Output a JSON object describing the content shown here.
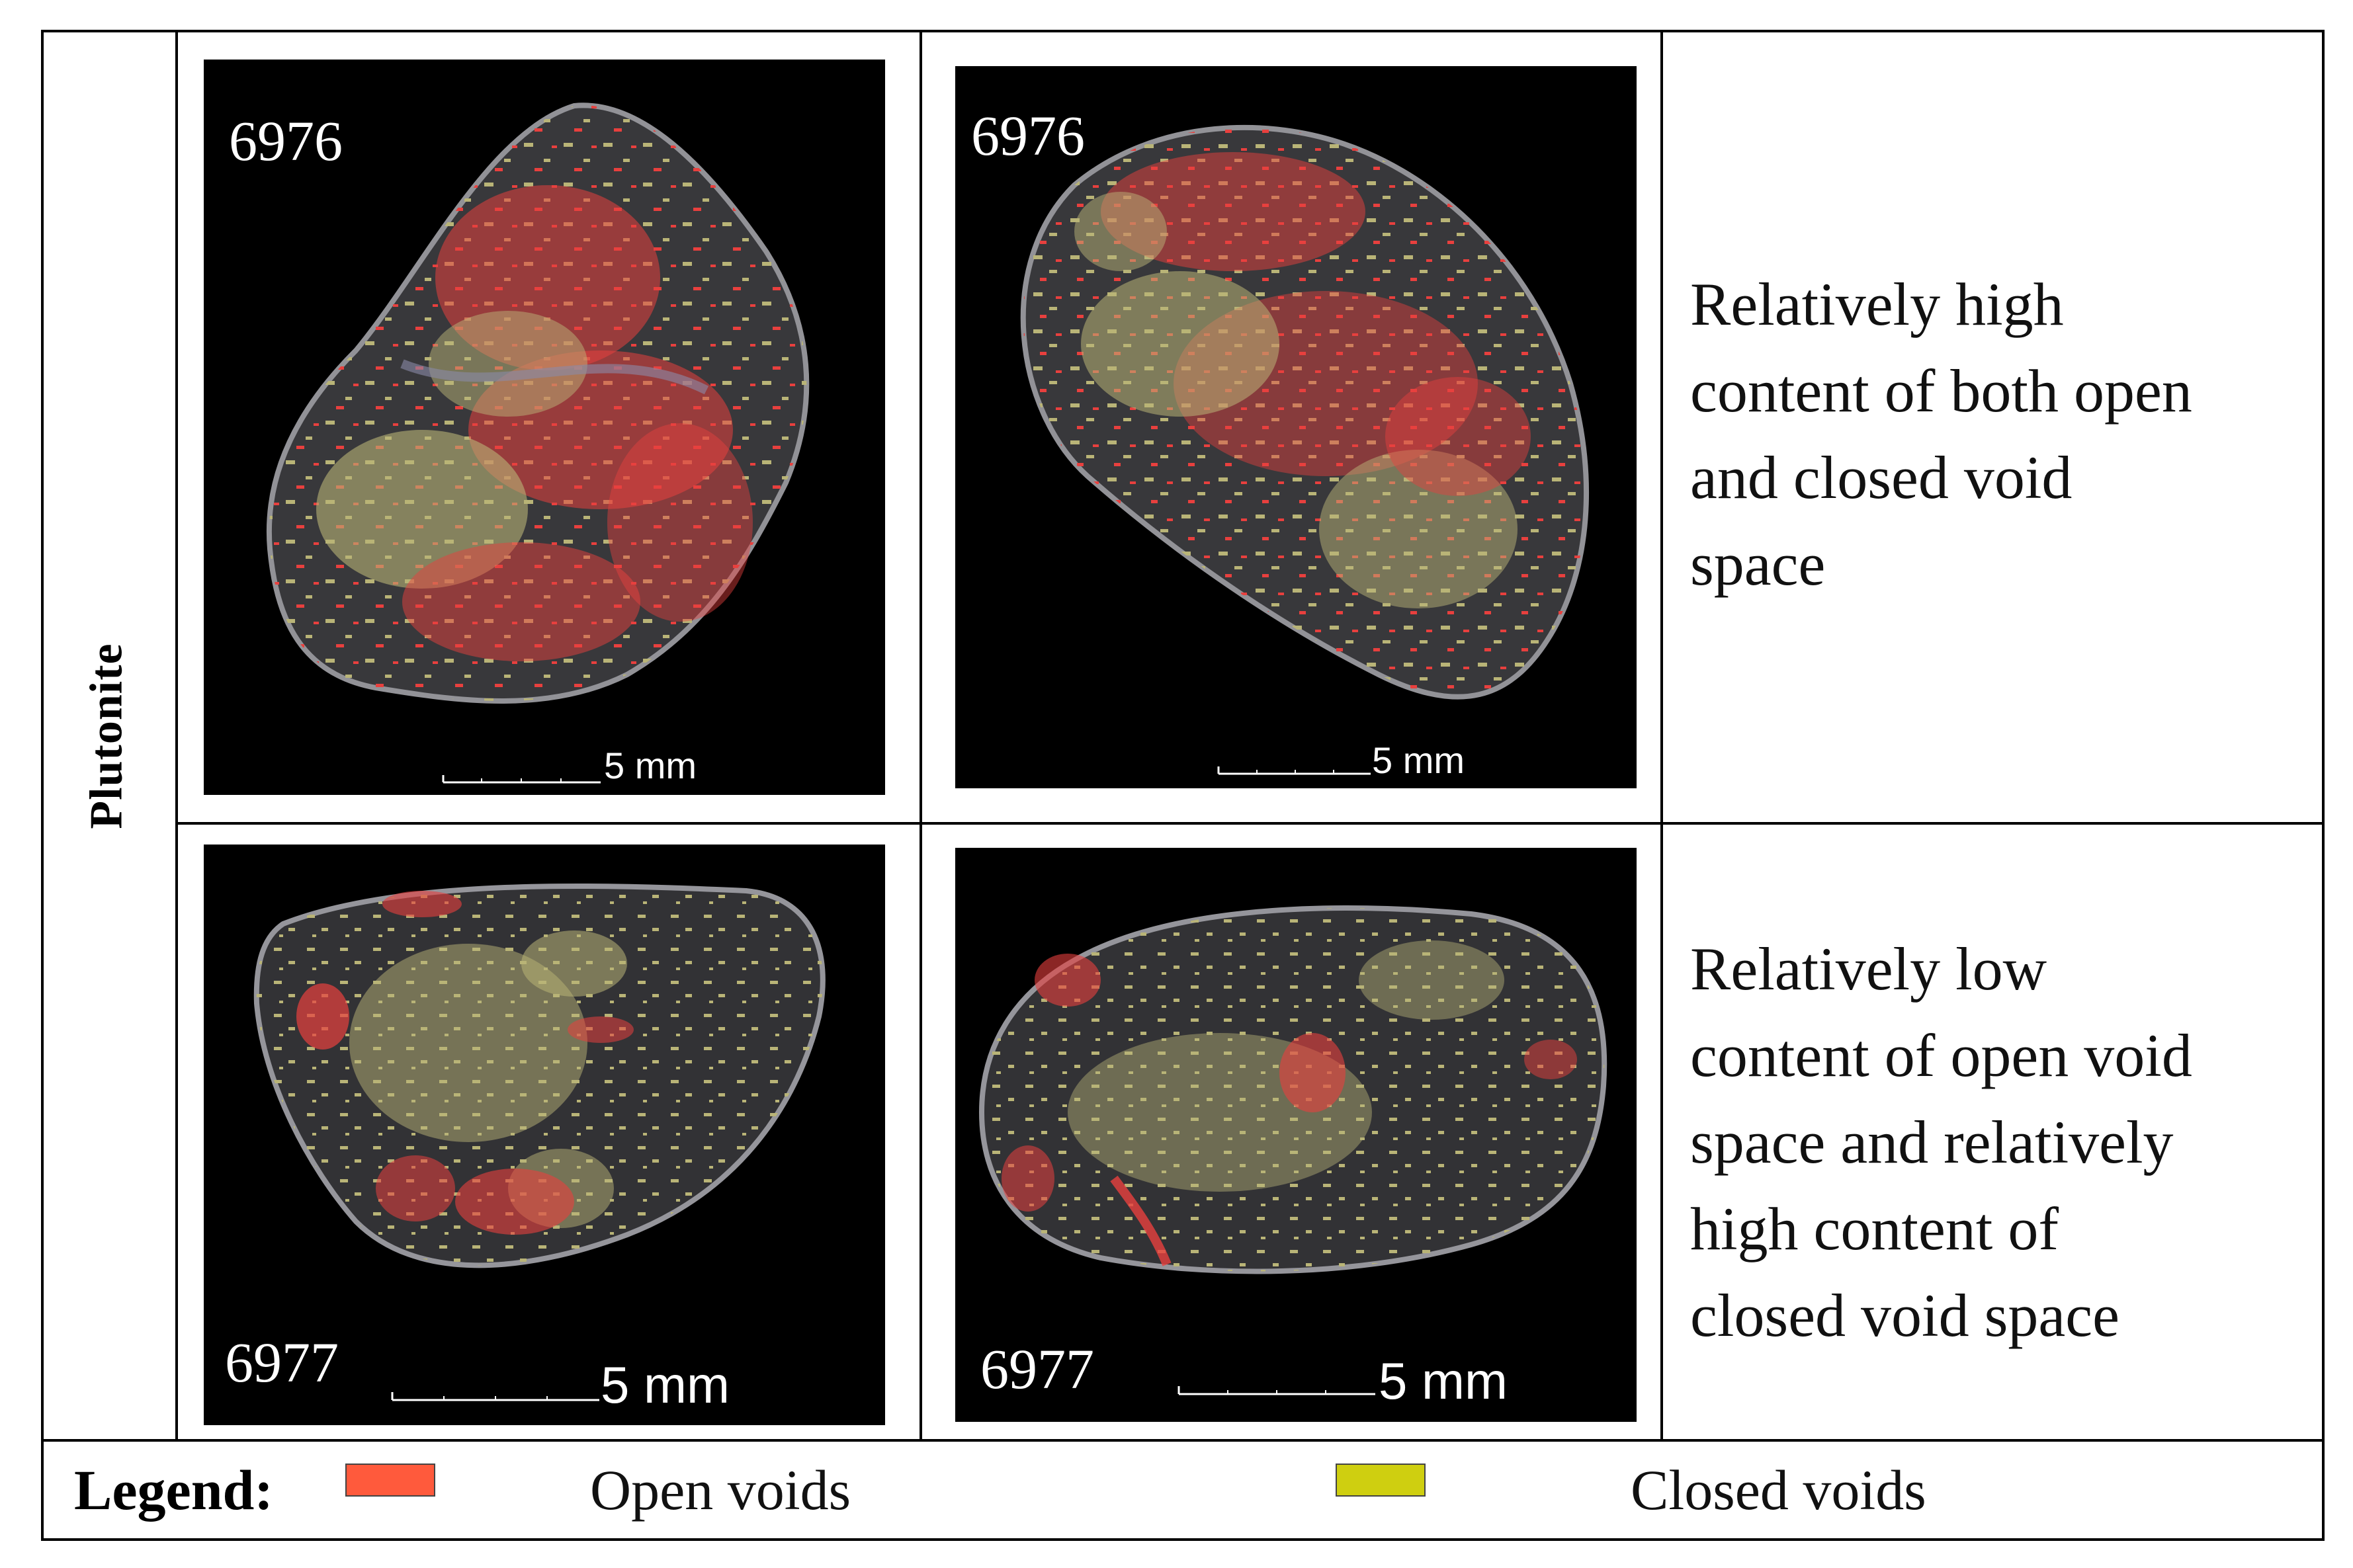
{
  "row_label": "Plutonite",
  "panels": [
    {
      "sample_id": "6976",
      "scale_label": "5 mm"
    },
    {
      "sample_id": "6976",
      "scale_label": "5 mm"
    },
    {
      "sample_id": "6977",
      "scale_label": "5 mm"
    },
    {
      "sample_id": "6977",
      "scale_label": "5 mm"
    }
  ],
  "descriptions": [
    {
      "lines": [
        "Relatively high",
        "content of both open",
        "and closed void",
        "space"
      ]
    },
    {
      "lines": [
        "Relatively low",
        "content of open void",
        "space and relatively",
        "high content of",
        "closed void space"
      ]
    }
  ],
  "legend": {
    "title": "Legend:",
    "items": [
      {
        "label": "Open voids",
        "color": "#ff5a3c"
      },
      {
        "label": "Closed voids",
        "color": "#cfcf10"
      }
    ]
  },
  "colors": {
    "open_voids": "#e8403e",
    "closed_voids": "#b9b477",
    "rock": "#3a3a3c",
    "background": "#000000"
  }
}
